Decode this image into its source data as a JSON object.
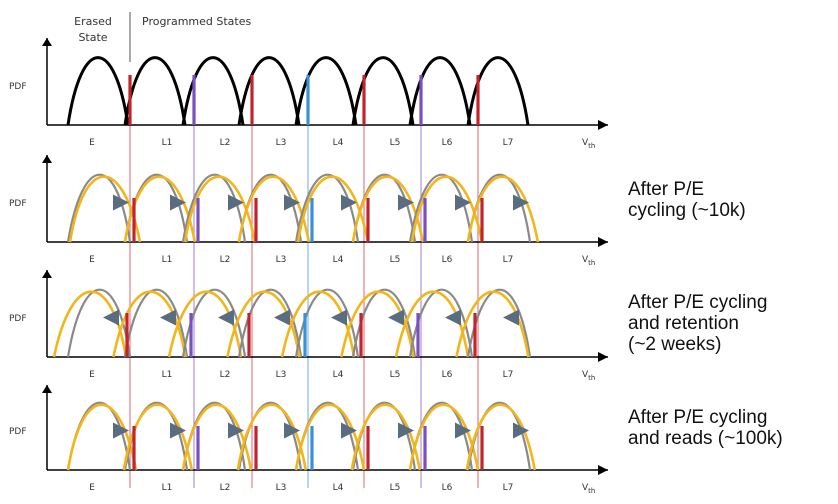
{
  "header": {
    "erased_line1": "Erased",
    "erased_line2": "State",
    "programmed": "Programmed States"
  },
  "axis": {
    "y_label": "PDF",
    "x_label_main": "V",
    "x_label_sub": "th"
  },
  "states": [
    "E",
    "L1",
    "L2",
    "L3",
    "L4",
    "L5",
    "L6",
    "L7"
  ],
  "colors": {
    "original": "#000000",
    "shifted": "#f2b61c",
    "reference": "#8a8a8a",
    "arrow": "#5a6c80",
    "read_red": "#c0242c",
    "read_purple": "#7a4fbf",
    "read_blue": "#3b8fd6",
    "guide_red": "#e6898f",
    "guide_purple": "#b89be0",
    "guide_blue": "#8cc0ea"
  },
  "read_reference_colors": [
    "red",
    "purple",
    "red",
    "blue",
    "red",
    "purple",
    "red"
  ],
  "panels": [
    {
      "caption": []
    },
    {
      "caption": [
        "After P/E",
        "cycling (~10k)"
      ]
    },
    {
      "caption": [
        "After P/E cycling",
        "and retention",
        "(~2 weeks)"
      ]
    },
    {
      "caption": [
        "After P/E cycling",
        "and reads (~100k)"
      ]
    }
  ]
}
